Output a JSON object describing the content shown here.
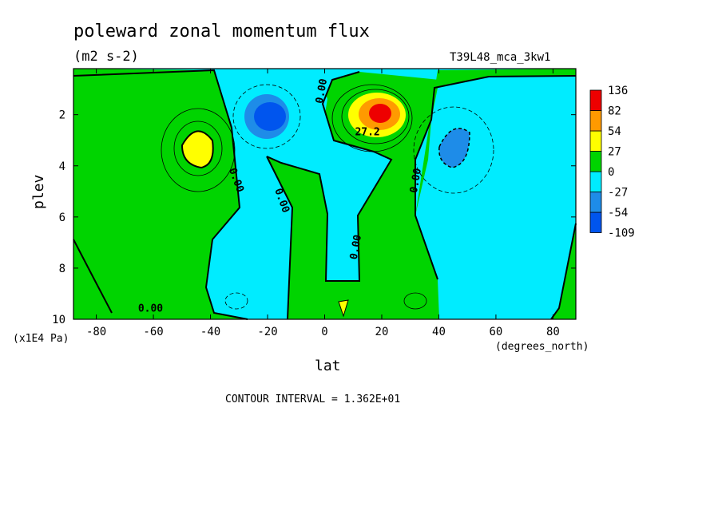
{
  "chart_data": {
    "type": "heatmap",
    "title": "poleward zonal momentum flux",
    "subtitle": "(m2 s-2)",
    "experiment": "T39L48_mca_3kw1",
    "xlabel": "lat",
    "x_units": "(degrees_north)",
    "ylabel": "plev",
    "y_units": "(x1E4 Pa)",
    "footnote": "CONTOUR INTERVAL = 1.362E+01",
    "xlim": [
      -88,
      88
    ],
    "ylim": [
      10,
      0.2
    ],
    "x_ticks": [
      -80,
      -60,
      -40,
      -20,
      0,
      20,
      40,
      60,
      80
    ],
    "y_ticks": [
      2,
      4,
      6,
      8,
      10
    ],
    "contour_labels": [
      {
        "text": "0.00",
        "lat": -32,
        "plev": 4.6
      },
      {
        "text": "0.00",
        "lat": -16,
        "plev": 5.4
      },
      {
        "text": "0.00",
        "lat": 0,
        "plev": 1.1
      },
      {
        "text": "0.00",
        "lat": 12,
        "plev": 7.2
      },
      {
        "text": "0.00",
        "lat": 33,
        "plev": 4.6
      },
      {
        "text": "0.00",
        "lat": -61,
        "plev": 9.7
      },
      {
        "text": "27.2",
        "lat": 15,
        "plev": 2.8
      }
    ],
    "colorbar": {
      "colors": [
        "#0055ee",
        "#1e8ce8",
        "#00ecff",
        "#00d400",
        "#ffff00",
        "#ff9a00",
        "#ee0000"
      ],
      "labels": [
        "-109",
        "-54",
        "-27",
        "0",
        "27",
        "54",
        "82",
        "136"
      ]
    },
    "features": [
      {
        "name": "SH negative jet core",
        "lat": -20,
        "plev": 2.0,
        "value": -85
      },
      {
        "name": "NH positive jet core",
        "lat": 20,
        "plev": 1.9,
        "value": 120
      },
      {
        "name": "SH positive maximum",
        "lat": -45,
        "plev": 3.1,
        "value": 35
      },
      {
        "name": "NH negative minimum",
        "lat": 45,
        "plev": 3.1,
        "value": -40
      }
    ]
  }
}
